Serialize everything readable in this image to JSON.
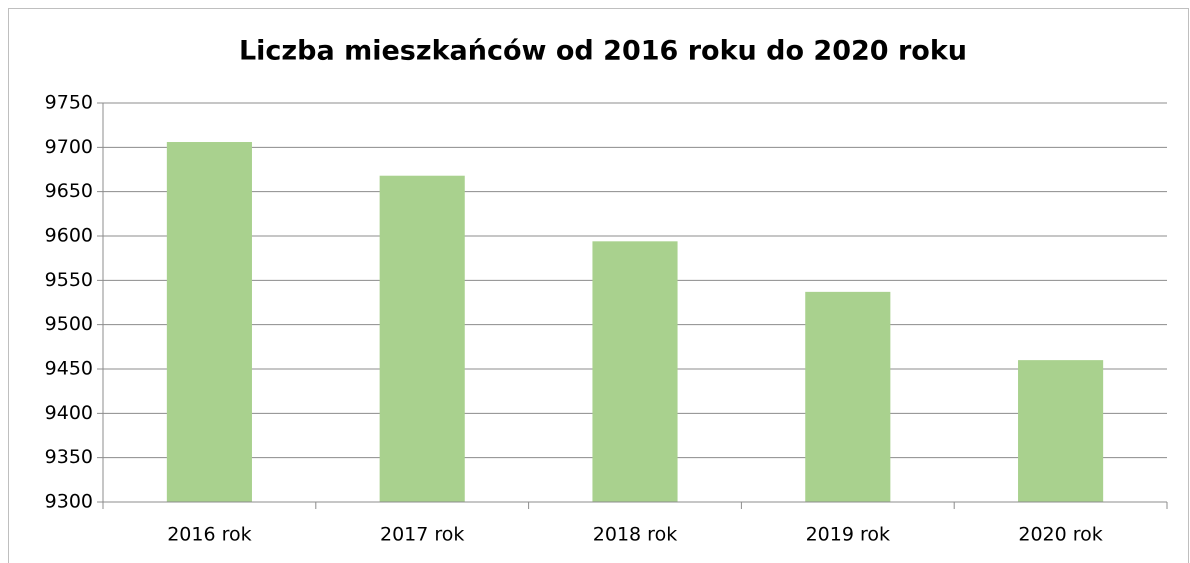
{
  "chart_data": {
    "type": "bar",
    "title": "Liczba mieszkańców od 2016 roku do 2020 roku",
    "categories": [
      "2016 rok",
      "2017 rok",
      "2018 rok",
      "2019 rok",
      "2020 rok"
    ],
    "values": [
      9706,
      9668,
      9594,
      9537,
      9460
    ],
    "color": "#a9d18e",
    "ylim": [
      9300,
      9750
    ],
    "yticks": [
      9300,
      9350,
      9400,
      9450,
      9500,
      9550,
      9600,
      9650,
      9700,
      9750
    ],
    "grid": true
  }
}
